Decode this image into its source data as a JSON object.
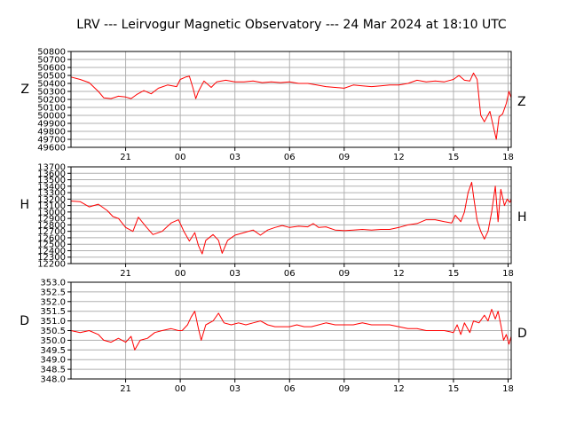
{
  "title": "LRV --- Leirvogur Magnetic Observatory --- 24 Mar 2024 at 18:10 UTC",
  "colors": {
    "trace": "#ff0000",
    "grid": "#b0b0b0",
    "axis": "#000000"
  },
  "chart_data": [
    {
      "type": "line",
      "component": "Z",
      "title": "",
      "ylabel_left": "Z",
      "ylabel_right": "Z",
      "x_ticks": [
        "21",
        "00",
        "03",
        "06",
        "09",
        "12",
        "15",
        "18"
      ],
      "x_tick_hours": [
        3,
        6,
        9,
        12,
        15,
        18,
        21,
        24
      ],
      "xlim_hours": [
        0,
        24.17
      ],
      "ylim": [
        49600,
        50800
      ],
      "y_ticks": [
        "49600",
        "49700",
        "49800",
        "49900",
        "50000",
        "50100",
        "50200",
        "50300",
        "50400",
        "50500",
        "50600",
        "50700",
        "50800"
      ],
      "grid": true,
      "series": [
        {
          "points": [
            [
              0,
              50480
            ],
            [
              0.5,
              50450
            ],
            [
              1,
              50410
            ],
            [
              1.5,
              50300
            ],
            [
              1.8,
              50220
            ],
            [
              2.2,
              50210
            ],
            [
              2.6,
              50240
            ],
            [
              3.0,
              50230
            ],
            [
              3.3,
              50210
            ],
            [
              3.6,
              50260
            ],
            [
              4.0,
              50310
            ],
            [
              4.4,
              50270
            ],
            [
              4.8,
              50340
            ],
            [
              5.3,
              50380
            ],
            [
              5.8,
              50360
            ],
            [
              6.0,
              50450
            ],
            [
              6.3,
              50480
            ],
            [
              6.5,
              50490
            ],
            [
              6.7,
              50340
            ],
            [
              6.85,
              50210
            ],
            [
              7.0,
              50300
            ],
            [
              7.3,
              50430
            ],
            [
              7.7,
              50350
            ],
            [
              8.0,
              50420
            ],
            [
              8.5,
              50440
            ],
            [
              9.0,
              50420
            ],
            [
              9.5,
              50420
            ],
            [
              10.0,
              50430
            ],
            [
              10.5,
              50410
            ],
            [
              11.0,
              50420
            ],
            [
              11.5,
              50410
            ],
            [
              12.0,
              50420
            ],
            [
              12.5,
              50400
            ],
            [
              13.0,
              50400
            ],
            [
              13.5,
              50380
            ],
            [
              14.0,
              50360
            ],
            [
              14.5,
              50350
            ],
            [
              15.0,
              50340
            ],
            [
              15.5,
              50380
            ],
            [
              16.0,
              50370
            ],
            [
              16.5,
              50360
            ],
            [
              17.0,
              50370
            ],
            [
              17.5,
              50380
            ],
            [
              18.0,
              50380
            ],
            [
              18.5,
              50400
            ],
            [
              19.0,
              50440
            ],
            [
              19.5,
              50420
            ],
            [
              20.0,
              50430
            ],
            [
              20.5,
              50420
            ],
            [
              21.0,
              50450
            ],
            [
              21.3,
              50500
            ],
            [
              21.6,
              50440
            ],
            [
              21.9,
              50430
            ],
            [
              22.1,
              50530
            ],
            [
              22.3,
              50450
            ],
            [
              22.5,
              50000
            ],
            [
              22.7,
              49920
            ],
            [
              23.0,
              50050
            ],
            [
              23.2,
              49850
            ],
            [
              23.35,
              49700
            ],
            [
              23.5,
              49980
            ],
            [
              23.7,
              50020
            ],
            [
              23.9,
              50150
            ],
            [
              24.05,
              50300
            ],
            [
              24.17,
              50220
            ]
          ]
        }
      ]
    },
    {
      "type": "line",
      "component": "H",
      "title": "",
      "ylabel_left": "H",
      "ylabel_right": "H",
      "x_ticks": [
        "21",
        "00",
        "03",
        "06",
        "09",
        "12",
        "15",
        "18"
      ],
      "x_tick_hours": [
        3,
        6,
        9,
        12,
        15,
        18,
        21,
        24
      ],
      "xlim_hours": [
        0,
        24.17
      ],
      "ylim": [
        12200,
        13700
      ],
      "y_ticks": [
        "12200",
        "12300",
        "12400",
        "12500",
        "12600",
        "12700",
        "12800",
        "12900",
        "13000",
        "13100",
        "13200",
        "13300",
        "13400",
        "13500",
        "13600",
        "13700"
      ],
      "grid": true,
      "series": [
        {
          "points": [
            [
              0,
              13170
            ],
            [
              0.5,
              13160
            ],
            [
              1,
              13080
            ],
            [
              1.5,
              13120
            ],
            [
              2,
              13020
            ],
            [
              2.3,
              12930
            ],
            [
              2.6,
              12900
            ],
            [
              3,
              12760
            ],
            [
              3.4,
              12700
            ],
            [
              3.7,
              12920
            ],
            [
              4.1,
              12780
            ],
            [
              4.5,
              12650
            ],
            [
              5,
              12700
            ],
            [
              5.5,
              12830
            ],
            [
              5.9,
              12880
            ],
            [
              6.2,
              12700
            ],
            [
              6.5,
              12550
            ],
            [
              6.8,
              12680
            ],
            [
              7,
              12480
            ],
            [
              7.2,
              12350
            ],
            [
              7.4,
              12560
            ],
            [
              7.8,
              12650
            ],
            [
              8.1,
              12560
            ],
            [
              8.3,
              12360
            ],
            [
              8.6,
              12560
            ],
            [
              9,
              12640
            ],
            [
              9.5,
              12680
            ],
            [
              10,
              12720
            ],
            [
              10.4,
              12640
            ],
            [
              10.8,
              12720
            ],
            [
              11.2,
              12760
            ],
            [
              11.6,
              12790
            ],
            [
              12,
              12760
            ],
            [
              12.5,
              12780
            ],
            [
              13,
              12770
            ],
            [
              13.3,
              12820
            ],
            [
              13.6,
              12760
            ],
            [
              14,
              12770
            ],
            [
              14.5,
              12720
            ],
            [
              15,
              12710
            ],
            [
              15.5,
              12720
            ],
            [
              16,
              12730
            ],
            [
              16.5,
              12720
            ],
            [
              17,
              12730
            ],
            [
              17.5,
              12730
            ],
            [
              18,
              12760
            ],
            [
              18.5,
              12800
            ],
            [
              19,
              12820
            ],
            [
              19.5,
              12880
            ],
            [
              20,
              12880
            ],
            [
              20.5,
              12850
            ],
            [
              20.9,
              12830
            ],
            [
              21.1,
              12950
            ],
            [
              21.4,
              12850
            ],
            [
              21.6,
              13000
            ],
            [
              21.8,
              13300
            ],
            [
              22.0,
              13460
            ],
            [
              22.1,
              13250
            ],
            [
              22.3,
              12870
            ],
            [
              22.5,
              12700
            ],
            [
              22.7,
              12580
            ],
            [
              22.9,
              12700
            ],
            [
              23.1,
              13000
            ],
            [
              23.3,
              13400
            ],
            [
              23.45,
              12850
            ],
            [
              23.6,
              13350
            ],
            [
              23.8,
              13100
            ],
            [
              23.95,
              13200
            ],
            [
              24.1,
              13150
            ],
            [
              24.17,
              13200
            ]
          ]
        }
      ]
    },
    {
      "type": "line",
      "component": "D",
      "title": "",
      "ylabel_left": "D",
      "ylabel_right": "D",
      "x_ticks": [
        "21",
        "00",
        "03",
        "06",
        "09",
        "12",
        "15",
        "18"
      ],
      "x_tick_hours": [
        3,
        6,
        9,
        12,
        15,
        18,
        21,
        24
      ],
      "xlim_hours": [
        0,
        24.17
      ],
      "ylim": [
        348.0,
        353.0
      ],
      "y_ticks": [
        "348.0",
        "348.5",
        "349.0",
        "349.5",
        "350.0",
        "350.5",
        "351.0",
        "351.5",
        "352.0",
        "352.5",
        "353.0"
      ],
      "grid": true,
      "series": [
        {
          "points": [
            [
              0,
              350.5
            ],
            [
              0.5,
              350.4
            ],
            [
              1,
              350.5
            ],
            [
              1.5,
              350.3
            ],
            [
              1.8,
              350.0
            ],
            [
              2.2,
              349.9
            ],
            [
              2.6,
              350.1
            ],
            [
              3,
              349.9
            ],
            [
              3.3,
              350.2
            ],
            [
              3.5,
              349.5
            ],
            [
              3.8,
              350.0
            ],
            [
              4.2,
              350.1
            ],
            [
              4.6,
              350.4
            ],
            [
              5,
              350.5
            ],
            [
              5.5,
              350.6
            ],
            [
              5.9,
              350.5
            ],
            [
              6.1,
              350.5
            ],
            [
              6.4,
              350.8
            ],
            [
              6.6,
              351.2
            ],
            [
              6.8,
              351.5
            ],
            [
              7.0,
              350.6
            ],
            [
              7.15,
              350.0
            ],
            [
              7.4,
              350.8
            ],
            [
              7.8,
              351.0
            ],
            [
              8.1,
              351.4
            ],
            [
              8.4,
              350.9
            ],
            [
              8.8,
              350.8
            ],
            [
              9.2,
              350.9
            ],
            [
              9.6,
              350.8
            ],
            [
              10.0,
              350.9
            ],
            [
              10.4,
              351.0
            ],
            [
              10.8,
              350.8
            ],
            [
              11.2,
              350.7
            ],
            [
              11.6,
              350.7
            ],
            [
              12,
              350.7
            ],
            [
              12.4,
              350.8
            ],
            [
              12.8,
              350.7
            ],
            [
              13.2,
              350.7
            ],
            [
              13.6,
              350.8
            ],
            [
              14,
              350.9
            ],
            [
              14.5,
              350.8
            ],
            [
              15,
              350.8
            ],
            [
              15.5,
              350.8
            ],
            [
              16,
              350.9
            ],
            [
              16.5,
              350.8
            ],
            [
              17,
              350.8
            ],
            [
              17.5,
              350.8
            ],
            [
              18,
              350.7
            ],
            [
              18.5,
              350.6
            ],
            [
              19,
              350.6
            ],
            [
              19.5,
              350.5
            ],
            [
              20,
              350.5
            ],
            [
              20.5,
              350.5
            ],
            [
              21,
              350.4
            ],
            [
              21.2,
              350.8
            ],
            [
              21.4,
              350.3
            ],
            [
              21.6,
              350.9
            ],
            [
              21.9,
              350.4
            ],
            [
              22.1,
              351.0
            ],
            [
              22.4,
              350.9
            ],
            [
              22.7,
              351.3
            ],
            [
              22.9,
              351.0
            ],
            [
              23.1,
              351.6
            ],
            [
              23.3,
              351.1
            ],
            [
              23.45,
              351.5
            ],
            [
              23.6,
              350.8
            ],
            [
              23.75,
              350.0
            ],
            [
              23.9,
              350.3
            ],
            [
              24.05,
              349.8
            ],
            [
              24.17,
              350.2
            ]
          ]
        }
      ]
    }
  ]
}
